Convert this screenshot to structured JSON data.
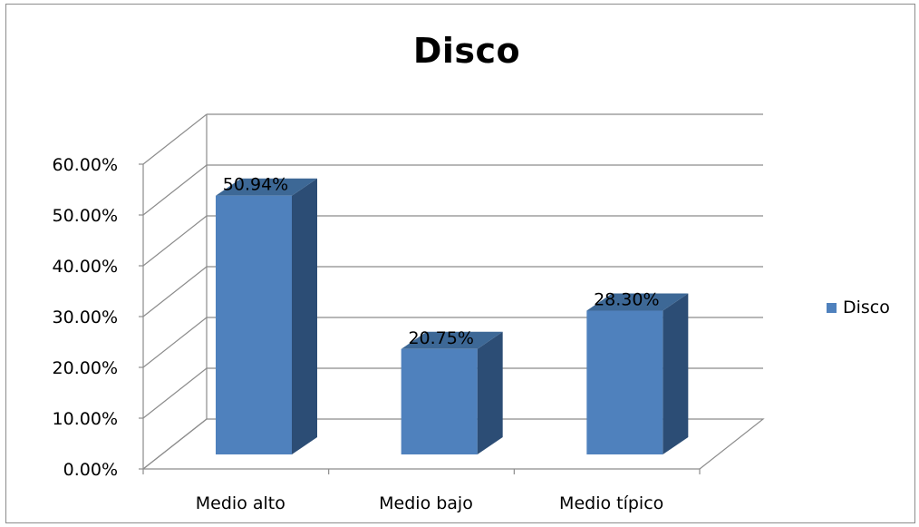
{
  "chart_data": {
    "type": "bar",
    "title": "Disco",
    "categories": [
      "Medio alto",
      "Medio bajo",
      "Medio típico"
    ],
    "series": [
      {
        "name": "Disco",
        "values": [
          50.94,
          20.75,
          28.3
        ]
      }
    ],
    "data_labels": [
      "50.94%",
      "20.75%",
      "28.30%"
    ],
    "y_ticks": [
      "0.00%",
      "10.00%",
      "20.00%",
      "30.00%",
      "40.00%",
      "50.00%",
      "60.00%"
    ],
    "ylim": [
      0,
      60
    ],
    "xlabel": "",
    "ylabel": "",
    "grid": true,
    "legend_position": "right",
    "style": "3d-column",
    "colors": {
      "bar_front": "#4f81bd",
      "bar_side": "#2c4d75",
      "bar_top": "#3d6896",
      "grid": "#8c8c8c"
    }
  }
}
